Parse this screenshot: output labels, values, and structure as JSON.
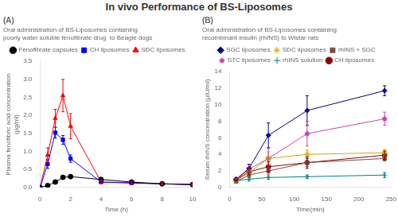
{
  "title": "In vivo Performance of BS-Liposomes",
  "chart_data": [
    {
      "type": "line",
      "title": "(A)",
      "subtitle": [
        "Oral administration of BS-Liposomes containing",
        "poorly water soluble fenofibrate drug  to Beagle dogs"
      ],
      "xlabel": "Time (h)",
      "ylabel": "Plasma fenofibric acid concentration\n(μg/ml)",
      "xlim": [
        0,
        10
      ],
      "ylim": [
        0,
        3.5
      ],
      "xticks": [
        0,
        2,
        4,
        6,
        8,
        10
      ],
      "yticks": [
        {
          "value": 0,
          "label": "0.0"
        },
        0.5,
        {
          "value": 1,
          "label": "1.0"
        },
        1.5,
        {
          "value": 2,
          "label": "2.0"
        },
        2.5,
        {
          "value": 3,
          "label": "3.0"
        },
        3.5
      ],
      "grid": false,
      "legend": "top",
      "x": [
        0,
        0.5,
        1.0,
        1.5,
        2.0,
        4.0,
        6.0,
        8.0,
        10.0
      ],
      "series": [
        {
          "name": "Fenofibrate capsules",
          "color": "black",
          "marker": "circle",
          "values": [
            0,
            0.05,
            0.15,
            0.28,
            0.3,
            0.22,
            0.15,
            0.1,
            0.08
          ],
          "errors": [
            0,
            0.03,
            0.05,
            0.04,
            0.04,
            0.03,
            0.02,
            0.02,
            0.02
          ]
        },
        {
          "name": "CH liposomes",
          "color": "blue",
          "marker": "square",
          "values": [
            0,
            0.65,
            1.52,
            1.32,
            0.8,
            0.15,
            0.12,
            0.1,
            0.08
          ],
          "errors": [
            0,
            0.12,
            0.15,
            0.12,
            0.1,
            0.03,
            0.02,
            0.02,
            0.02
          ]
        },
        {
          "name": "SDC liposomes",
          "color": "red",
          "marker": "triangle",
          "values": [
            0,
            0.9,
            1.92,
            2.55,
            1.7,
            0.15,
            0.13,
            0.1,
            0.08
          ],
          "errors": [
            0,
            0.2,
            0.25,
            0.45,
            0.35,
            0.05,
            0.04,
            0.03,
            0.02
          ]
        }
      ]
    },
    {
      "type": "line",
      "title": "(B)",
      "subtitle": [
        "Oral administration of BS-Liposomes containing",
        "recombinant insulin (rhINS) to Wistar rats"
      ],
      "xlabel": "Time(min)",
      "ylabel": "Serum rhINS concentration (μIU/ml)",
      "xlim": [
        0,
        250
      ],
      "ylim": [
        0,
        14
      ],
      "xticks": [
        0,
        50,
        100,
        150,
        200,
        250
      ],
      "yticks": [
        0,
        2,
        4,
        6,
        8,
        10,
        12,
        14
      ],
      "grid": false,
      "legend": "top",
      "x": [
        10,
        30,
        60,
        120,
        240
      ],
      "series": [
        {
          "name": "SGC liposomes",
          "color": "navy",
          "marker": "diamond",
          "values": [
            1.0,
            2.3,
            6.3,
            9.3,
            11.7
          ],
          "errors": [
            0.2,
            0.5,
            1.5,
            1.8,
            0.6
          ]
        },
        {
          "name": "SDC liposomes",
          "color": "#ccaa00",
          "marker": "star",
          "values": [
            0.8,
            1.8,
            3.5,
            4.0,
            4.2
          ],
          "errors": [
            0.2,
            0.4,
            0.8,
            0.5,
            0.4
          ]
        },
        {
          "name": "rhINS + SGC",
          "color": "#7a4f3a",
          "marker": "square",
          "values": [
            0.7,
            1.5,
            2.0,
            3.0,
            3.5
          ],
          "errors": [
            0.1,
            0.3,
            0.4,
            0.5,
            0.3
          ]
        },
        {
          "name": "STC liposomes",
          "color": "#cc44aa",
          "marker": "pentagon",
          "values": [
            0.9,
            2.2,
            3.5,
            6.5,
            8.3
          ],
          "errors": [
            0.2,
            0.5,
            1.2,
            1.5,
            0.8
          ]
        },
        {
          "name": "rhINS solution",
          "color": "teal",
          "marker": "plus",
          "values": [
            0.8,
            1.0,
            1.2,
            1.3,
            1.5
          ],
          "errors": [
            0.1,
            0.2,
            0.2,
            0.2,
            0.3
          ]
        },
        {
          "name": "CH liposomes",
          "color": "darkred",
          "marker": "circle",
          "values": [
            0.9,
            1.9,
            2.5,
            3.0,
            3.9
          ],
          "errors": [
            0.1,
            0.4,
            0.6,
            0.7,
            0.5
          ]
        }
      ]
    }
  ]
}
